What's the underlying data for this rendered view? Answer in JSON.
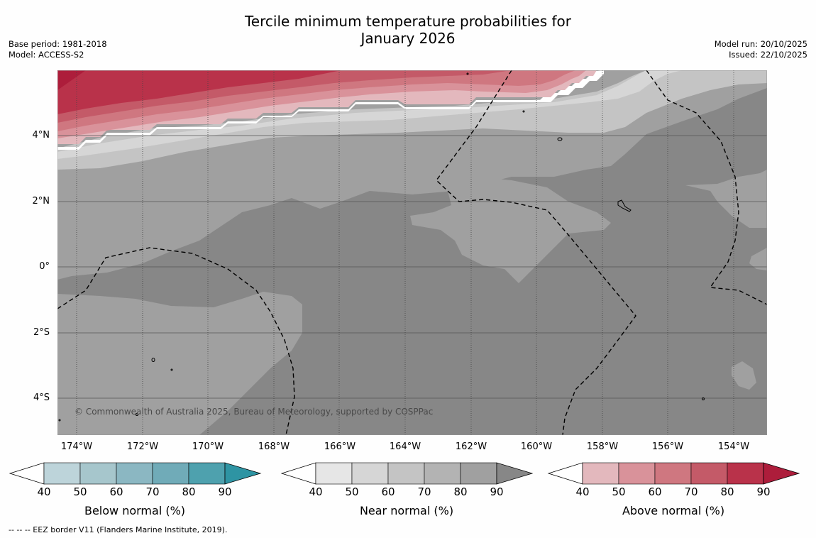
{
  "title": {
    "line1": "Tercile minimum temperature probabilities for",
    "line2": "January 2026"
  },
  "meta": {
    "base_period": "Base period: 1981-2018",
    "model": "Model: ACCESS-S2",
    "model_run": "Model run: 20/10/2025",
    "issued": "Issued: 22/10/2025"
  },
  "map": {
    "lat_labels": [
      "4°N",
      "2°N",
      "0°",
      "2°S",
      "4°S"
    ],
    "lon_labels": [
      "174°W",
      "172°W",
      "170°W",
      "168°W",
      "166°W",
      "164°W",
      "162°W",
      "160°W",
      "158°W",
      "156°W",
      "154°W"
    ],
    "copyright": "© Commonwealth of Australia 2025, Bureau of Meteorology, supported by COSPPac"
  },
  "colorbars": [
    {
      "label": "Below normal (%)",
      "ticks": [
        "40",
        "50",
        "60",
        "70",
        "80",
        "90"
      ],
      "colors": [
        "#ffffff",
        "#bdd4da",
        "#a6c6cc",
        "#8bb7c2",
        "#70abb8",
        "#4ea1ae",
        "#2e94a3"
      ]
    },
    {
      "label": "Near normal (%)",
      "ticks": [
        "40",
        "50",
        "60",
        "70",
        "80",
        "90"
      ],
      "colors": [
        "#ffffff",
        "#e6e6e6",
        "#d6d6d6",
        "#c4c4c4",
        "#b3b3b3",
        "#a0a0a0",
        "#878787"
      ]
    },
    {
      "label": "Above normal (%)",
      "ticks": [
        "40",
        "50",
        "60",
        "70",
        "80",
        "90"
      ],
      "colors": [
        "#ffffff",
        "#e3b8bd",
        "#d9929a",
        "#cf7780",
        "#c45a68",
        "#b9324a",
        "#ad1d3b"
      ]
    }
  ],
  "footnote": "--  --  -- EEZ border V11 (Flanders Marine Institute, 2019)."
}
